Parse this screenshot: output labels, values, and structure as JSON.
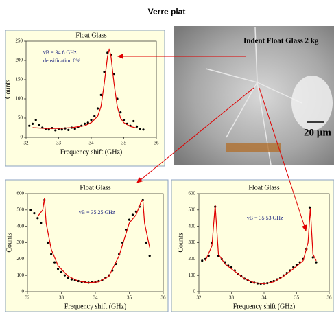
{
  "title": "Verre plat",
  "image": {
    "caption": "Indent Float Glass 2 kg",
    "scale": "20 µm"
  },
  "chart_data": [
    {
      "type": "scatter",
      "title": "Float Glass",
      "x_label": "Frequency shift (GHz)",
      "y_label": "Counts",
      "annotations": [
        "νB = 34.6 GHz",
        "densification 0%"
      ],
      "xlim": [
        32,
        36
      ],
      "xticks": [
        32,
        33,
        34,
        35,
        36
      ],
      "ylim": [
        0,
        250
      ],
      "yticks": [
        0,
        50,
        100,
        150,
        200,
        250
      ],
      "series": [
        {
          "color": "#000000",
          "x": [
            32.1,
            32.2,
            32.3,
            32.4,
            32.5,
            32.6,
            32.7,
            32.8,
            32.9,
            33.0,
            33.1,
            33.2,
            33.3,
            33.4,
            33.5,
            33.6,
            33.7,
            33.8,
            33.9,
            34.0,
            34.1,
            34.2,
            34.3,
            34.4,
            34.5,
            34.6,
            34.7,
            34.8,
            34.9,
            35.0,
            35.1,
            35.2,
            35.3,
            35.4,
            35.5,
            35.6
          ],
          "values": [
            30,
            35,
            45,
            32,
            25,
            22,
            20,
            24,
            18,
            22,
            20,
            23,
            19,
            25,
            22,
            27,
            30,
            35,
            38,
            45,
            55,
            75,
            110,
            170,
            220,
            215,
            165,
            100,
            65,
            45,
            35,
            30,
            42,
            28,
            22,
            20
          ]
        },
        {
          "color": "#e00000",
          "line": true,
          "x": [
            32.2,
            32.6,
            33.0,
            33.4,
            33.8,
            34.0,
            34.2,
            34.3,
            34.4,
            34.5,
            34.55,
            34.6,
            34.7,
            34.8,
            34.9,
            35.0,
            35.2,
            35.4
          ],
          "values": [
            25,
            23,
            23,
            25,
            30,
            38,
            55,
            80,
            140,
            210,
            228,
            215,
            140,
            80,
            50,
            38,
            28,
            24
          ]
        }
      ]
    },
    {
      "type": "scatter",
      "title": "Float Glass",
      "x_label": "Frequency shift (GHz)",
      "y_label": "Counts",
      "annotations": [
        "νB = 35.25 GHz"
      ],
      "xlim": [
        32,
        36
      ],
      "xticks": [
        32,
        33,
        34,
        35,
        36
      ],
      "ylim": [
        0,
        600
      ],
      "yticks": [
        0,
        100,
        200,
        300,
        400,
        500,
        600
      ],
      "series": [
        {
          "color": "#000000",
          "x": [
            32.1,
            32.2,
            32.3,
            32.4,
            32.5,
            32.6,
            32.7,
            32.8,
            32.9,
            33.0,
            33.1,
            33.2,
            33.3,
            33.4,
            33.5,
            33.6,
            33.7,
            33.8,
            33.9,
            34.0,
            34.1,
            34.2,
            34.3,
            34.4,
            34.5,
            34.6,
            34.7,
            34.8,
            34.9,
            35.0,
            35.1,
            35.2,
            35.3,
            35.4,
            35.5,
            35.6
          ],
          "values": [
            500,
            480,
            450,
            420,
            560,
            300,
            230,
            180,
            140,
            120,
            100,
            85,
            75,
            70,
            65,
            60,
            58,
            55,
            60,
            58,
            65,
            70,
            85,
            100,
            130,
            170,
            230,
            300,
            380,
            440,
            470,
            490,
            520,
            560,
            300,
            220
          ]
        },
        {
          "color": "#e00000",
          "line": true,
          "x": [
            32.3,
            32.45,
            32.5,
            32.55,
            32.7,
            32.9,
            33.2,
            33.5,
            33.8,
            34.1,
            34.4,
            34.7,
            35.0,
            35.2,
            35.35,
            35.4,
            35.45,
            35.6
          ],
          "values": [
            460,
            500,
            570,
            420,
            260,
            160,
            95,
            65,
            55,
            60,
            95,
            220,
            420,
            470,
            550,
            560,
            420,
            270
          ]
        }
      ]
    },
    {
      "type": "scatter",
      "title": "Float Glass",
      "x_label": "Frequency shift (GHz)",
      "y_label": "Counts",
      "annotations": [
        "νB = 35.53 GHz"
      ],
      "xlim": [
        32,
        36
      ],
      "xticks": [
        32,
        33,
        34,
        35,
        36
      ],
      "ylim": [
        0,
        600
      ],
      "yticks": [
        0,
        100,
        200,
        300,
        400,
        500,
        600
      ],
      "series": [
        {
          "color": "#000000",
          "x": [
            32.1,
            32.2,
            32.3,
            32.4,
            32.5,
            32.6,
            32.7,
            32.8,
            32.9,
            33.0,
            33.1,
            33.2,
            33.3,
            33.4,
            33.5,
            33.6,
            33.7,
            33.8,
            33.9,
            34.0,
            34.1,
            34.2,
            34.3,
            34.4,
            34.5,
            34.6,
            34.7,
            34.8,
            34.9,
            35.0,
            35.1,
            35.2,
            35.3,
            35.4,
            35.5,
            35.6
          ],
          "values": [
            190,
            200,
            220,
            300,
            520,
            220,
            200,
            180,
            160,
            150,
            130,
            110,
            95,
            80,
            70,
            60,
            55,
            50,
            48,
            50,
            52,
            58,
            65,
            75,
            85,
            100,
            115,
            130,
            150,
            165,
            180,
            200,
            260,
            515,
            210,
            180
          ]
        },
        {
          "color": "#e00000",
          "line": true,
          "x": [
            32.2,
            32.4,
            32.5,
            32.6,
            32.8,
            33.1,
            33.4,
            33.7,
            34.0,
            34.3,
            34.6,
            34.9,
            35.2,
            35.35,
            35.42,
            35.5,
            35.6
          ],
          "values": [
            190,
            280,
            530,
            230,
            170,
            125,
            80,
            55,
            48,
            60,
            95,
            140,
            190,
            300,
            510,
            230,
            190
          ]
        }
      ]
    }
  ]
}
